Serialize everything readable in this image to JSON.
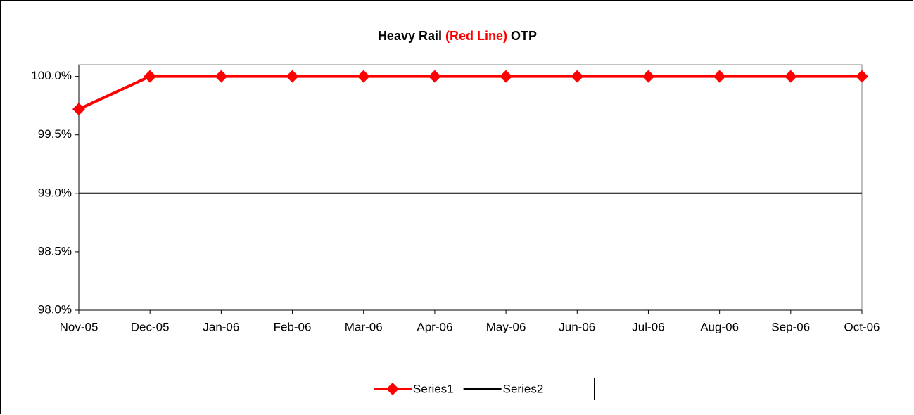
{
  "chart_data": {
    "type": "line",
    "title_parts": [
      {
        "text": "Heavy Rail",
        "color": "#000000"
      },
      {
        "text": "(Red Line)",
        "color": "#ff0000"
      },
      {
        "text": "OTP",
        "color": "#000000"
      }
    ],
    "categories": [
      "Nov-05",
      "Dec-05",
      "Jan-06",
      "Feb-06",
      "Mar-06",
      "Apr-06",
      "May-06",
      "Jun-06",
      "Jul-06",
      "Aug-06",
      "Sep-06",
      "Oct-06"
    ],
    "series": [
      {
        "name": "Series1",
        "color": "#ff0000",
        "marker": "diamond",
        "values": [
          99.72,
          100,
          100,
          100,
          100,
          100,
          100,
          100,
          100,
          100,
          100,
          100
        ]
      },
      {
        "name": "Series2",
        "color": "#000000",
        "marker": "none",
        "values": [
          99,
          99,
          99,
          99,
          99,
          99,
          99,
          99,
          99,
          99,
          99,
          99
        ]
      }
    ],
    "ylim": [
      98,
      100.1
    ],
    "yticks": [
      {
        "value": 98,
        "label": "98.0%"
      },
      {
        "value": 98.5,
        "label": "98.5%"
      },
      {
        "value": 99,
        "label": "99.0%"
      },
      {
        "value": 99.5,
        "label": "99.5%"
      },
      {
        "value": 100,
        "label": "100.0%"
      }
    ],
    "grid": false,
    "legend": "bottom"
  }
}
